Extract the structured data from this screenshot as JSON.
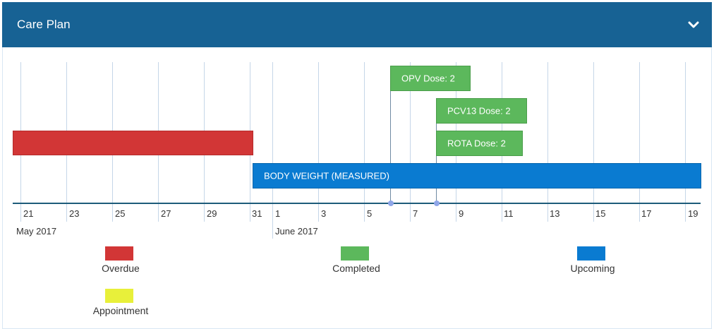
{
  "header": {
    "title": "Care Plan",
    "toggle_icon": "chevron-down-icon"
  },
  "colors": {
    "header": "#176294",
    "overdue": "#d23636",
    "completed": "#5cb85c",
    "upcoming": "#0a7bd1",
    "appointment": "#e8f03a"
  },
  "axis": {
    "ticks": [
      "21",
      "23",
      "25",
      "27",
      "29",
      "31",
      "1",
      "3",
      "5",
      "7",
      "9",
      "11",
      "13",
      "15",
      "17",
      "19"
    ],
    "months": [
      "May 2017",
      "June 2017"
    ]
  },
  "events": {
    "overdue": {
      "label": ""
    },
    "body_weight": {
      "label": "BODY WEIGHT (MEASURED)"
    },
    "opv": {
      "label": "OPV Dose: 2"
    },
    "pcv13": {
      "label": "PCV13 Dose: 2"
    },
    "rota": {
      "label": "ROTA Dose: 2"
    }
  },
  "legend": {
    "overdue": "Overdue",
    "completed": "Completed",
    "upcoming": "Upcoming",
    "appointment": "Appointment"
  }
}
